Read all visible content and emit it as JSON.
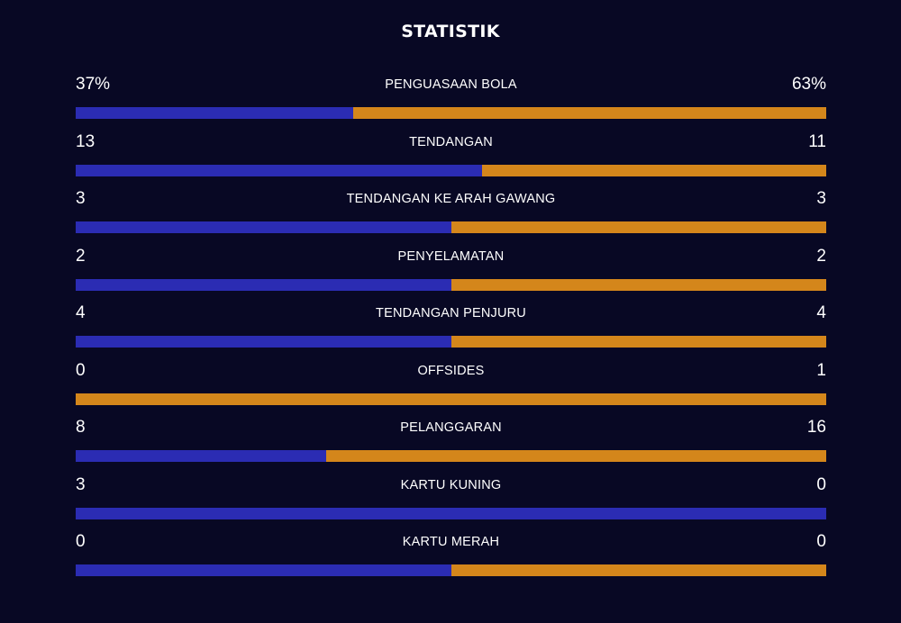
{
  "header": {
    "title": "STATISTIK"
  },
  "colors": {
    "background": "#080824",
    "home": "#2b2cb3",
    "away": "#d4861b"
  },
  "stats": [
    {
      "label": "PENGUASAAN BOLA",
      "home_display": "37%",
      "away_display": "63%",
      "home": 37,
      "away": 63
    },
    {
      "label": "TENDANGAN",
      "home_display": "13",
      "away_display": "11",
      "home": 13,
      "away": 11
    },
    {
      "label": "TENDANGAN KE ARAH GAWANG",
      "home_display": "3",
      "away_display": "3",
      "home": 3,
      "away": 3
    },
    {
      "label": "PENYELAMATAN",
      "home_display": "2",
      "away_display": "2",
      "home": 2,
      "away": 2
    },
    {
      "label": "TENDANGAN PENJURU",
      "home_display": "4",
      "away_display": "4",
      "home": 4,
      "away": 4
    },
    {
      "label": "OFFSIDES",
      "home_display": "0",
      "away_display": "1",
      "home": 0,
      "away": 1
    },
    {
      "label": "PELANGGARAN",
      "home_display": "8",
      "away_display": "16",
      "home": 8,
      "away": 16
    },
    {
      "label": "KARTU KUNING",
      "home_display": "3",
      "away_display": "0",
      "home": 3,
      "away": 0
    },
    {
      "label": "KARTU MERAH",
      "home_display": "0",
      "away_display": "0",
      "home": 0,
      "away": 0
    }
  ]
}
